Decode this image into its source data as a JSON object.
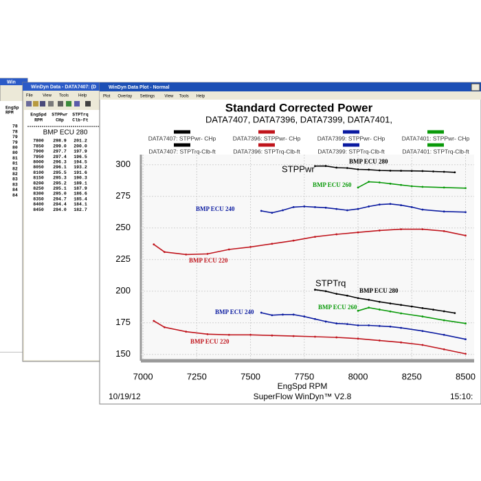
{
  "back_window": {
    "title": "Win",
    "headers": [
      "EngSp",
      "RPM"
    ],
    "rows": [
      "78",
      "78",
      "79",
      "79",
      "80",
      "80",
      "81",
      "81",
      "82",
      "82",
      "83",
      "83",
      "84",
      "84"
    ]
  },
  "data_window": {
    "title": "WinDyn Data - DATA7407: (D",
    "menu": [
      "File",
      "View",
      "Tools",
      "Help"
    ],
    "headers": [
      [
        "EngSpd",
        "RPM"
      ],
      [
        "STPPwr",
        "CHp"
      ],
      [
        "STPTrq",
        "Clb-Ft"
      ]
    ],
    "caption": "BMP ECU 280",
    "rows": [
      [
        "7800",
        "298.9",
        "201.2"
      ],
      [
        "7850",
        "299.0",
        "200.0"
      ],
      [
        "7900",
        "297.7",
        "197.9"
      ],
      [
        "7950",
        "297.4",
        "196.5"
      ],
      [
        "8000",
        "296.3",
        "194.5"
      ],
      [
        "8050",
        "296.1",
        "193.2"
      ],
      [
        "8100",
        "295.5",
        "191.6"
      ],
      [
        "8150",
        "295.3",
        "190.3"
      ],
      [
        "8200",
        "295.2",
        "189.1"
      ],
      [
        "8250",
        "295.1",
        "187.9"
      ],
      [
        "8300",
        "295.0",
        "186.6"
      ],
      [
        "8350",
        "294.7",
        "185.4"
      ],
      [
        "8400",
        "294.4",
        "184.1"
      ],
      [
        "8450",
        "294.0",
        "182.7"
      ]
    ]
  },
  "plot_window": {
    "title": "WinDyn Data Plot - Normal",
    "menu": [
      "Plot",
      "Overlay",
      "Settings",
      "View",
      "Tools",
      "Help"
    ]
  },
  "chart_data": {
    "type": "line",
    "title": "Standard Corrected Power",
    "subtitle": "DATA7407, DATA7396, DATA7399, DATA7401,",
    "x_label": "EngSpd  RPM",
    "xlim": [
      6990,
      8540
    ],
    "ylim": [
      145,
      308
    ],
    "xticks": [
      7000,
      7250,
      7500,
      7750,
      8000,
      8250,
      8500
    ],
    "yticks": [
      150,
      175,
      200,
      225,
      250,
      275,
      300
    ],
    "grid": true,
    "series": [
      {
        "name": "DATA7407: STPPwr- CHp",
        "color": "#000000",
        "x": [
          7800,
          7850,
          7900,
          7950,
          8000,
          8050,
          8100,
          8150,
          8200,
          8250,
          8300,
          8350,
          8400,
          8450
        ],
        "values": [
          298.9,
          299.0,
          297.7,
          297.4,
          296.3,
          296.1,
          295.5,
          295.3,
          295.2,
          295.1,
          295.0,
          294.7,
          294.4,
          294.0
        ]
      },
      {
        "name": "DATA7396: STPPwr- CHp",
        "color": "#c0141c",
        "x": [
          7050,
          7100,
          7200,
          7300,
          7400,
          7500,
          7600,
          7700,
          7800,
          7900,
          8000,
          8100,
          8200,
          8300,
          8400,
          8500
        ],
        "values": [
          237,
          231,
          229,
          229.5,
          233,
          235,
          237.5,
          240,
          243,
          245,
          246.5,
          248,
          249,
          249,
          247.5,
          244
        ]
      },
      {
        "name": "DATA7399: STPPwr- CHp",
        "color": "#0a1aa0",
        "x": [
          7550,
          7600,
          7650,
          7700,
          7750,
          7800,
          7850,
          7900,
          7950,
          8000,
          8050,
          8100,
          8150,
          8200,
          8250,
          8300,
          8400,
          8500
        ],
        "values": [
          263.5,
          262,
          264,
          266.5,
          267,
          266.5,
          266,
          265,
          264,
          265,
          267,
          268.5,
          269,
          268,
          266.5,
          264.5,
          263,
          262.5
        ]
      },
      {
        "name": "DATA7401: STPPwr- CHp",
        "color": "#0a9a0a",
        "x": [
          8000,
          8050,
          8100,
          8150,
          8200,
          8250,
          8300,
          8400,
          8500
        ],
        "values": [
          282,
          286.5,
          286,
          285,
          284,
          283,
          282.5,
          282,
          281.5
        ]
      },
      {
        "name": "DATA7407: STPTrq-Clb-ft",
        "color": "#000000",
        "x": [
          7800,
          7850,
          7900,
          7950,
          8000,
          8050,
          8100,
          8150,
          8200,
          8250,
          8300,
          8350,
          8400,
          8450
        ],
        "values": [
          201.2,
          200.0,
          197.9,
          196.5,
          194.5,
          193.2,
          191.6,
          190.3,
          189.1,
          187.9,
          186.6,
          185.4,
          184.1,
          182.7
        ]
      },
      {
        "name": "DATA7396: STPTrq-Clb-ft",
        "color": "#c0141c",
        "x": [
          7050,
          7100,
          7200,
          7300,
          7400,
          7500,
          7600,
          7700,
          7800,
          7900,
          8000,
          8100,
          8200,
          8300,
          8400,
          8500
        ],
        "values": [
          176.5,
          171.5,
          168,
          166,
          165.5,
          165.5,
          165,
          164.5,
          164,
          163.5,
          162.5,
          161,
          159.5,
          157.5,
          154,
          150.5
        ]
      },
      {
        "name": "DATA7399: STPTrq-Clb-ft",
        "color": "#0a1aa0",
        "x": [
          7550,
          7600,
          7650,
          7700,
          7750,
          7800,
          7850,
          7900,
          7950,
          8000,
          8050,
          8100,
          8150,
          8200,
          8300,
          8400,
          8500
        ],
        "values": [
          183,
          181,
          181.5,
          181.5,
          180,
          178,
          176,
          174.5,
          174,
          173,
          173,
          172.5,
          172,
          171,
          168.5,
          165.5,
          162
        ]
      },
      {
        "name": "DATA7401: STPTrq-Clb-ft",
        "color": "#0a9a0a",
        "x": [
          8000,
          8050,
          8100,
          8150,
          8200,
          8300,
          8400,
          8500
        ],
        "values": [
          184.5,
          187,
          185.5,
          184,
          182.5,
          180,
          177,
          174.5
        ]
      }
    ],
    "annotations": [
      {
        "text": "STPPwr",
        "color": "#000000"
      },
      {
        "text": "BMP ECU 280",
        "color": "#000000"
      },
      {
        "text": "BMP ECU 260",
        "color": "#0a9a0a"
      },
      {
        "text": "BMP ECU 240",
        "color": "#0a1aa0"
      },
      {
        "text": "BMP ECU 220",
        "color": "#c0141c"
      },
      {
        "text": "STPTrq",
        "color": "#000000"
      },
      {
        "text": "BMP ECU 280",
        "color": "#000000"
      },
      {
        "text": "BMP ECU 260",
        "color": "#0a9a0a"
      },
      {
        "text": "BMP ECU 240",
        "color": "#0a1aa0"
      },
      {
        "text": "BMP ECU 220",
        "color": "#c0141c"
      }
    ]
  },
  "footer": {
    "date": "10/19/12",
    "software": "SuperFlow WinDyn™ V2.8",
    "time": "15:10:"
  }
}
